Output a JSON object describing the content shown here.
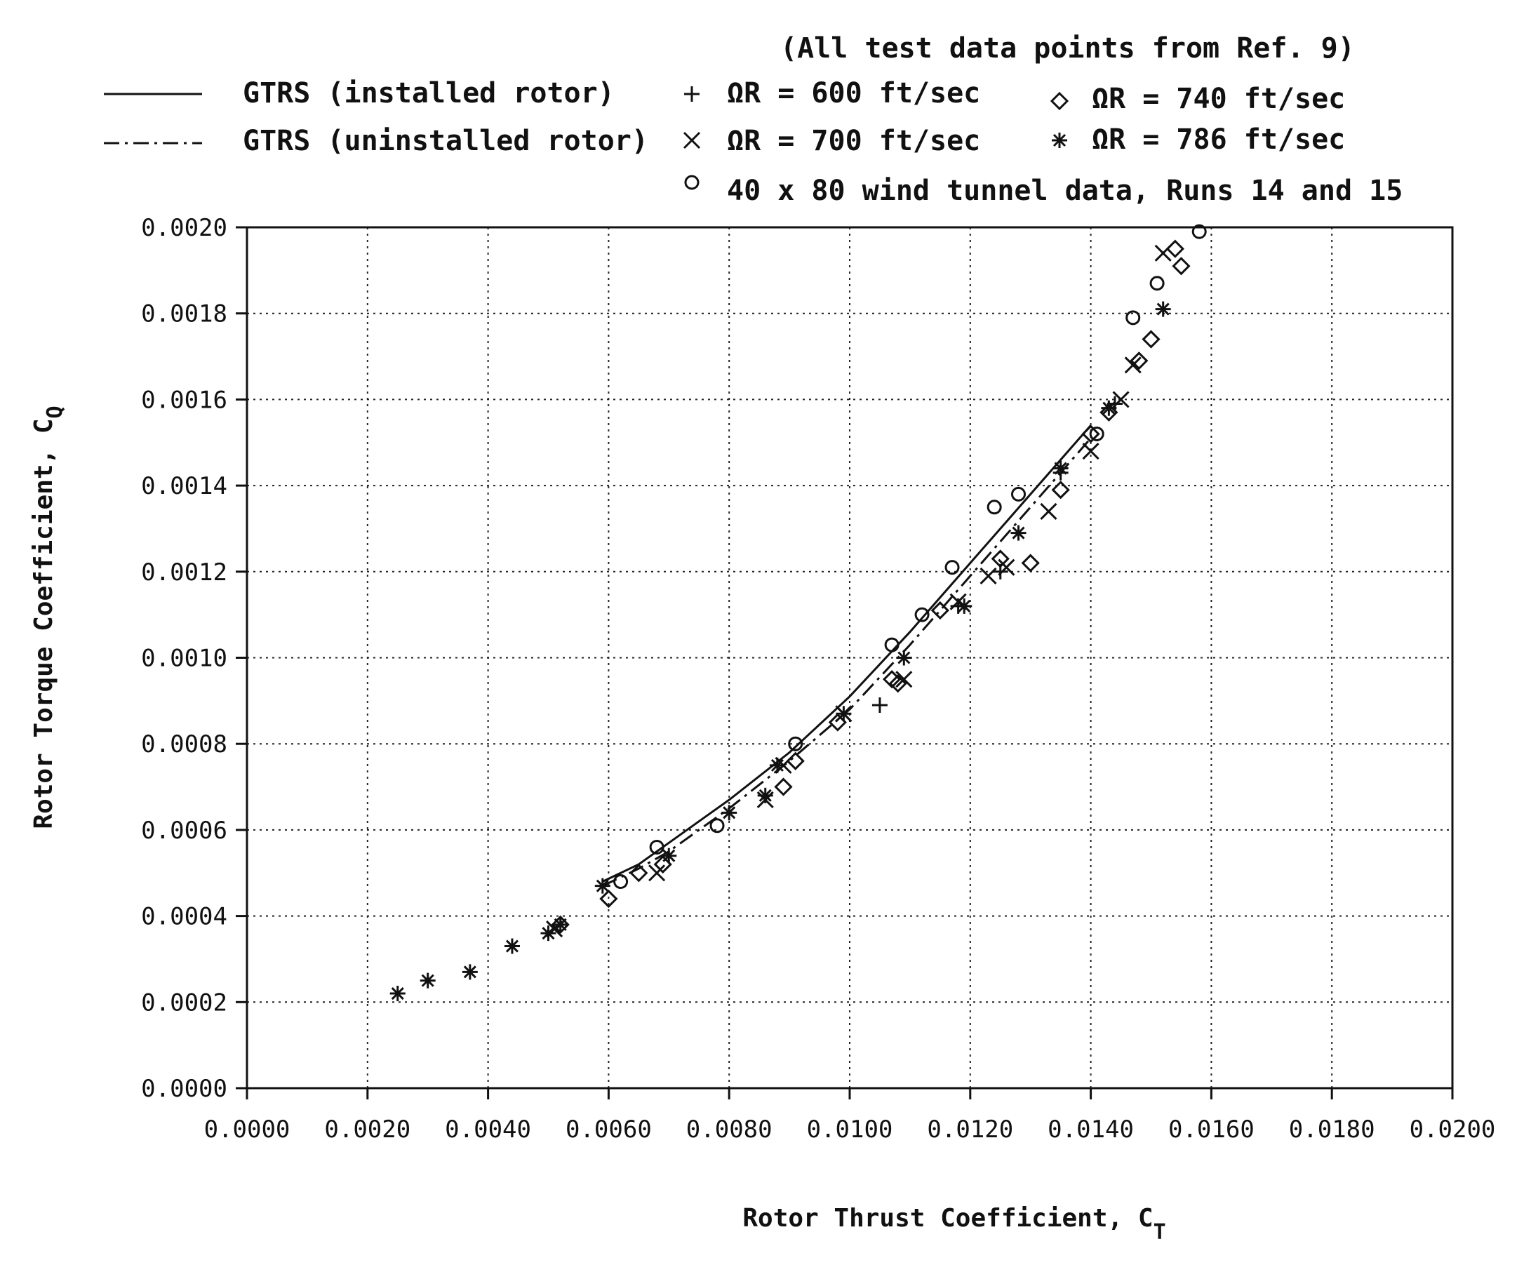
{
  "chart_data": {
    "type": "scatter",
    "title": "",
    "note": "(All test data points from Ref. 9)",
    "xlabel": "Rotor Thrust Coefficient, C",
    "xlabel_sub": "T",
    "ylabel": "Rotor Torque Coefficient, C",
    "ylabel_sub": "Q",
    "xlim": [
      0.0,
      0.02
    ],
    "ylim": [
      0.0,
      0.002
    ],
    "grid": true,
    "legend_position": "top",
    "xticks": [
      "0.0000",
      "0.0020",
      "0.0040",
      "0.0060",
      "0.0080",
      "0.0100",
      "0.0120",
      "0.0140",
      "0.0160",
      "0.0180",
      "0.0200"
    ],
    "yticks": [
      "0.0000",
      "0.0002",
      "0.0004",
      "0.0006",
      "0.0008",
      "0.0010",
      "0.0012",
      "0.0014",
      "0.0016",
      "0.0018",
      "0.0020"
    ],
    "legend": {
      "installed": "GTRS (installed rotor)",
      "uninstalled": "GTRS (uninstalled rotor)",
      "s600": "ΩR = 600 ft/sec",
      "s700": "ΩR = 700 ft/sec",
      "s740": "ΩR = 740 ft/sec",
      "s786": "ΩR = 786 ft/sec",
      "wt": "40 x 80 wind tunnel data, Runs 14 and 15"
    },
    "lines": [
      {
        "name": "GTRS (installed rotor)",
        "style": "solid",
        "x": [
          0.0059,
          0.0065,
          0.007,
          0.008,
          0.009,
          0.01,
          0.011,
          0.012,
          0.013,
          0.014
        ],
        "y": [
          0.00048,
          0.00052,
          0.00057,
          0.00067,
          0.00078,
          0.00091,
          0.00106,
          0.00122,
          0.00138,
          0.00154
        ]
      },
      {
        "name": "GTRS (uninstalled rotor)",
        "style": "dashdot",
        "x": [
          0.0059,
          0.0065,
          0.007,
          0.008,
          0.009,
          0.01,
          0.011,
          0.012,
          0.013,
          0.014
        ],
        "y": [
          0.00047,
          0.00051,
          0.00055,
          0.00065,
          0.00076,
          0.00088,
          0.00103,
          0.00119,
          0.00135,
          0.00151
        ]
      }
    ],
    "series": [
      {
        "name": "ΩR = 600 ft/sec",
        "marker": "plus",
        "x": [
          0.0105,
          0.0118,
          0.0125,
          0.0135,
          0.0144
        ],
        "y": [
          0.00089,
          0.00112,
          0.0012,
          0.00143,
          0.00159
        ]
      },
      {
        "name": "ΩR = 700 ft/sec",
        "marker": "x",
        "x": [
          0.0051,
          0.0068,
          0.0086,
          0.0089,
          0.0099,
          0.0109,
          0.0118,
          0.0123,
          0.0126,
          0.0133,
          0.014,
          0.0145,
          0.0147,
          0.0152
        ],
        "y": [
          0.00037,
          0.0005,
          0.00067,
          0.00075,
          0.00087,
          0.00095,
          0.00113,
          0.00119,
          0.00121,
          0.00134,
          0.00148,
          0.0016,
          0.00168,
          0.00194
        ]
      },
      {
        "name": "ΩR = 740 ft/sec",
        "marker": "diamond",
        "x": [
          0.0052,
          0.006,
          0.0065,
          0.0069,
          0.0089,
          0.0091,
          0.0098,
          0.0107,
          0.0108,
          0.0115,
          0.0125,
          0.013,
          0.0135,
          0.014,
          0.0143,
          0.0148,
          0.015,
          0.0154,
          0.0155
        ],
        "y": [
          0.00038,
          0.00044,
          0.0005,
          0.00052,
          0.0007,
          0.00076,
          0.00085,
          0.00095,
          0.00094,
          0.00111,
          0.00123,
          0.00122,
          0.00139,
          0.00152,
          0.00157,
          0.00169,
          0.00174,
          0.00195,
          0.00191
        ]
      },
      {
        "name": "ΩR = 786 ft/sec",
        "marker": "star",
        "x": [
          0.0025,
          0.003,
          0.0037,
          0.0044,
          0.005,
          0.0052,
          0.0059,
          0.007,
          0.008,
          0.0086,
          0.0088,
          0.0099,
          0.0109,
          0.0119,
          0.0128,
          0.0135,
          0.0143,
          0.0152
        ],
        "y": [
          0.00022,
          0.00025,
          0.00027,
          0.00033,
          0.00036,
          0.00038,
          0.00047,
          0.00054,
          0.00064,
          0.00068,
          0.00075,
          0.00087,
          0.001,
          0.00112,
          0.00129,
          0.00144,
          0.00158,
          0.00181
        ]
      },
      {
        "name": "40 x 80 wind tunnel data, Runs 14 and 15",
        "marker": "circle",
        "x": [
          0.0062,
          0.0068,
          0.0078,
          0.0091,
          0.0107,
          0.0112,
          0.0117,
          0.0124,
          0.0128,
          0.0141,
          0.0147,
          0.0151,
          0.0158
        ],
        "y": [
          0.00048,
          0.00056,
          0.00061,
          0.0008,
          0.00103,
          0.0011,
          0.00121,
          0.00135,
          0.00138,
          0.00152,
          0.00179,
          0.00187,
          0.00199
        ]
      }
    ]
  }
}
